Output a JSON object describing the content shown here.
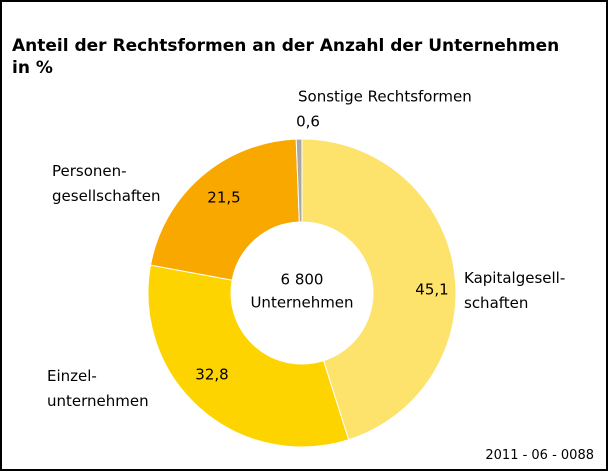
{
  "chart_data": {
    "type": "donut",
    "title": "Anteil der Rechtsformen an der Anzahl der Unternehmen in %",
    "categories": [
      "Kapitalgesell-\nschaften",
      "Einzel-\nunternehmen",
      "Personen-\ngesellschaften",
      "Sonstige Rechtsformen"
    ],
    "values": [
      45.1,
      32.8,
      21.5,
      0.6
    ],
    "value_labels": [
      "45,1",
      "32,8",
      "21,5",
      "0,6"
    ],
    "colors": [
      "#fde36b",
      "#fdd400",
      "#f9a800",
      "#a8a8a8"
    ],
    "center_value": 6800,
    "center_value_label": "6 800",
    "center_label": "Unternehmen",
    "source": "2011 - 06 - 0088"
  }
}
